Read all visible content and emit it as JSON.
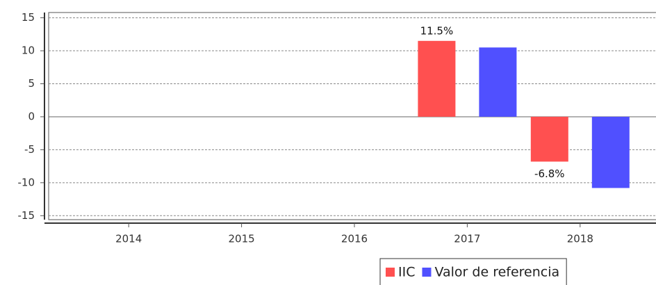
{
  "chart_data": {
    "type": "bar",
    "categories": [
      "2014",
      "2015",
      "2016",
      "2017",
      "2018"
    ],
    "series": [
      {
        "name": "IIC",
        "color": "#ff5050",
        "values": [
          null,
          null,
          null,
          11.5,
          -6.8
        ],
        "value_labels": [
          null,
          null,
          null,
          "11.5%",
          "-6.8%"
        ]
      },
      {
        "name": "Valor de referencia",
        "color": "#5050ff",
        "values": [
          null,
          null,
          null,
          10.5,
          -10.8
        ]
      }
    ],
    "ylim": [
      -15.6,
      15.8
    ],
    "yticks": [
      -15,
      -10,
      -5,
      0,
      5,
      10,
      15
    ],
    "grid": true,
    "legend": "bottom"
  }
}
